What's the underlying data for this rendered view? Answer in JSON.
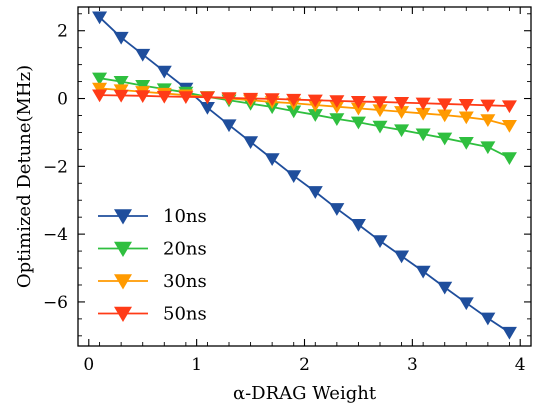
{
  "chart_data": {
    "type": "line",
    "xlabel": "α-DRAG Weight",
    "ylabel": "Optimized Detune(MHz)",
    "xlim": [
      -0.1,
      4.1
    ],
    "ylim": [
      -7.3,
      2.7
    ],
    "xticks": [
      0,
      1,
      2,
      3,
      4
    ],
    "yticks": [
      2,
      0,
      -2,
      -4,
      -6
    ],
    "xtick_labels": [
      "0",
      "1",
      "2",
      "3",
      "4"
    ],
    "ytick_labels": [
      "2",
      "0",
      "−2",
      "−4",
      "−6"
    ],
    "minor_ticks": true,
    "grid": false,
    "legend_position": "lower-left",
    "marker": "triangle-down",
    "x": [
      0.1,
      0.3,
      0.5,
      0.7,
      0.9,
      1.1,
      1.3,
      1.5,
      1.7,
      1.9,
      2.1,
      2.3,
      2.5,
      2.7,
      2.9,
      3.1,
      3.3,
      3.5,
      3.7,
      3.9
    ],
    "series": [
      {
        "name": "10ns",
        "color": "#1f4e9c",
        "values": [
          2.4,
          1.8,
          1.3,
          0.8,
          0.3,
          -0.27,
          -0.78,
          -1.28,
          -1.78,
          -2.28,
          -2.75,
          -3.25,
          -3.72,
          -4.2,
          -4.65,
          -5.1,
          -5.57,
          -6.03,
          -6.48,
          -6.9
        ]
      },
      {
        "name": "20ns",
        "color": "#2fbf3f",
        "values": [
          0.6,
          0.5,
          0.38,
          0.28,
          0.18,
          0.05,
          -0.05,
          -0.15,
          -0.25,
          -0.37,
          -0.48,
          -0.6,
          -0.7,
          -0.82,
          -0.93,
          -1.05,
          -1.17,
          -1.3,
          -1.43,
          -1.75
        ]
      },
      {
        "name": "30ns",
        "color": "#ff9a00",
        "values": [
          0.3,
          0.25,
          0.2,
          0.15,
          0.1,
          0.05,
          0.0,
          -0.05,
          -0.1,
          -0.14,
          -0.19,
          -0.24,
          -0.29,
          -0.34,
          -0.39,
          -0.44,
          -0.49,
          -0.55,
          -0.63,
          -0.8
        ]
      },
      {
        "name": "50ns",
        "color": "#ff3b17",
        "values": [
          0.1,
          0.09,
          0.08,
          0.06,
          0.05,
          0.04,
          0.02,
          0.0,
          -0.01,
          -0.03,
          -0.05,
          -0.07,
          -0.09,
          -0.1,
          -0.12,
          -0.14,
          -0.16,
          -0.18,
          -0.2,
          -0.22
        ]
      }
    ]
  }
}
